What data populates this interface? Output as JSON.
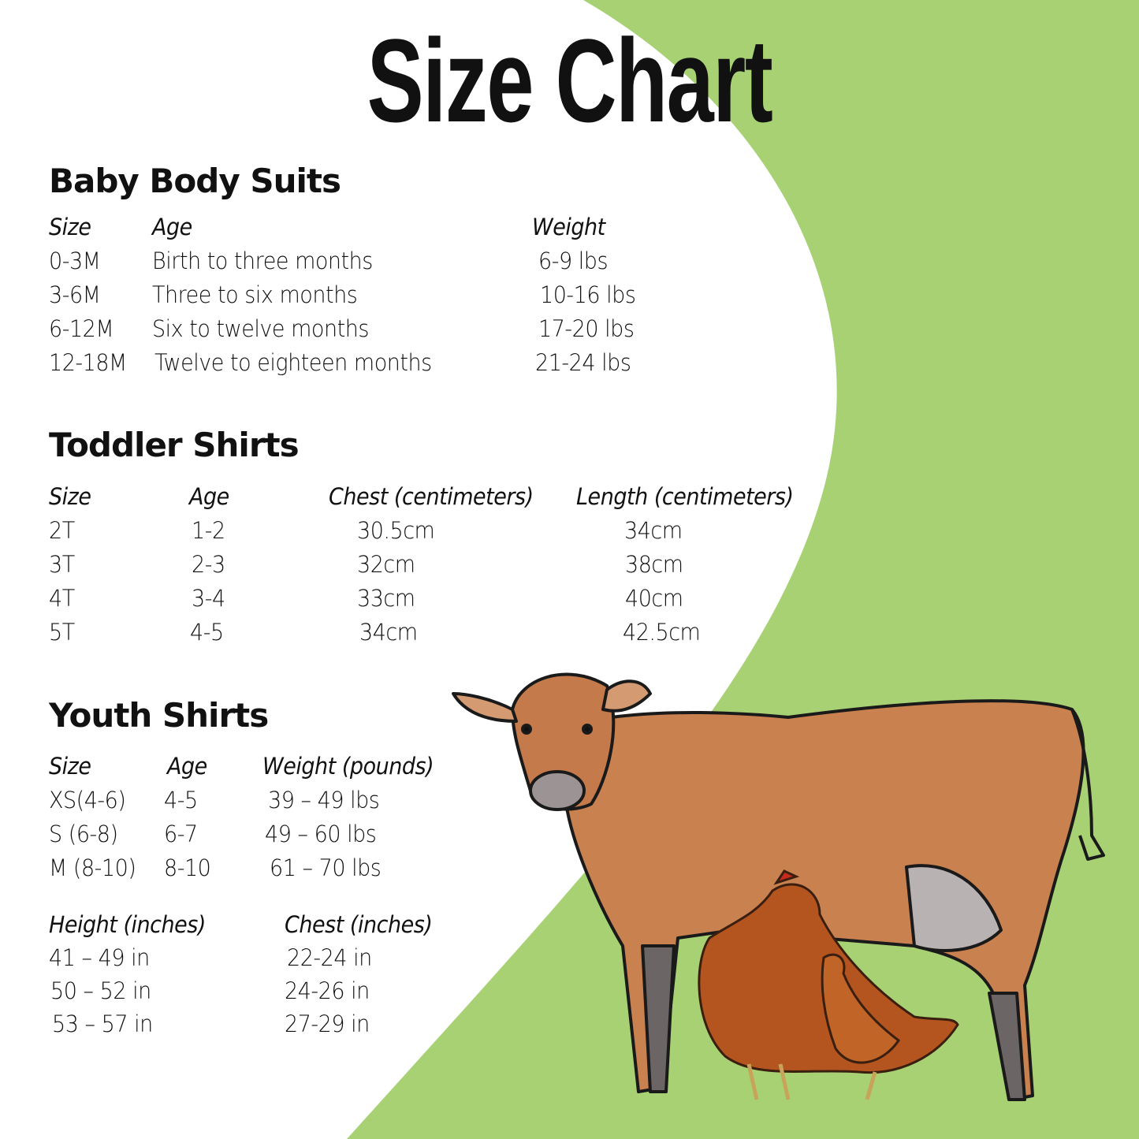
{
  "title": "Size Chart",
  "colors": {
    "background_green": "#a8d173",
    "panel": "#ffffff",
    "text": "#111111"
  },
  "sections": [
    {
      "heading": "Baby Body Suits",
      "tables": [
        {
          "headers": [
            "Size",
            "Age",
            "Weight"
          ],
          "rows": [
            [
              "0-3M",
              "Birth to three months",
              "6-9 lbs"
            ],
            [
              "3-6M",
              "Three to six months",
              "10-16 lbs"
            ],
            [
              "6-12M",
              "Six to twelve months",
              "17-20 lbs"
            ],
            [
              "12-18M",
              "Twelve to eighteen months",
              "21-24 lbs"
            ]
          ]
        }
      ]
    },
    {
      "heading": "Toddler Shirts",
      "tables": [
        {
          "headers": [
            "Size",
            "Age",
            "Chest (centimeters)",
            "Length (centimeters)"
          ],
          "rows": [
            [
              "2T",
              "1-2",
              "30.5cm",
              "34cm"
            ],
            [
              "3T",
              "2-3",
              "32cm",
              "38cm"
            ],
            [
              "4T",
              "3-4",
              "33cm",
              "40cm"
            ],
            [
              "5T",
              "4-5",
              "34cm",
              "42.5cm"
            ]
          ]
        }
      ]
    },
    {
      "heading": "Youth Shirts",
      "tables": [
        {
          "headers": [
            "Size",
            "Age",
            "Weight (pounds)"
          ],
          "rows": [
            [
              "XS(4-6)",
              "4-5",
              "39 – 49 lbs"
            ],
            [
              "S (6-8)",
              "6-7",
              "49 – 60 lbs"
            ],
            [
              "M (8-10)",
              "8-10",
              "61 – 70 lbs"
            ]
          ]
        },
        {
          "headers": [
            "Height (inches)",
            "Chest (inches)"
          ],
          "rows": [
            [
              "41 – 49 in",
              "22-24 in"
            ],
            [
              "50 – 52 in",
              "24-26 in"
            ],
            [
              "53 – 57 in",
              "27-29 in"
            ]
          ]
        }
      ]
    }
  ],
  "illustration": {
    "subjects": [
      "cow-icon",
      "chicken-icon"
    ]
  }
}
